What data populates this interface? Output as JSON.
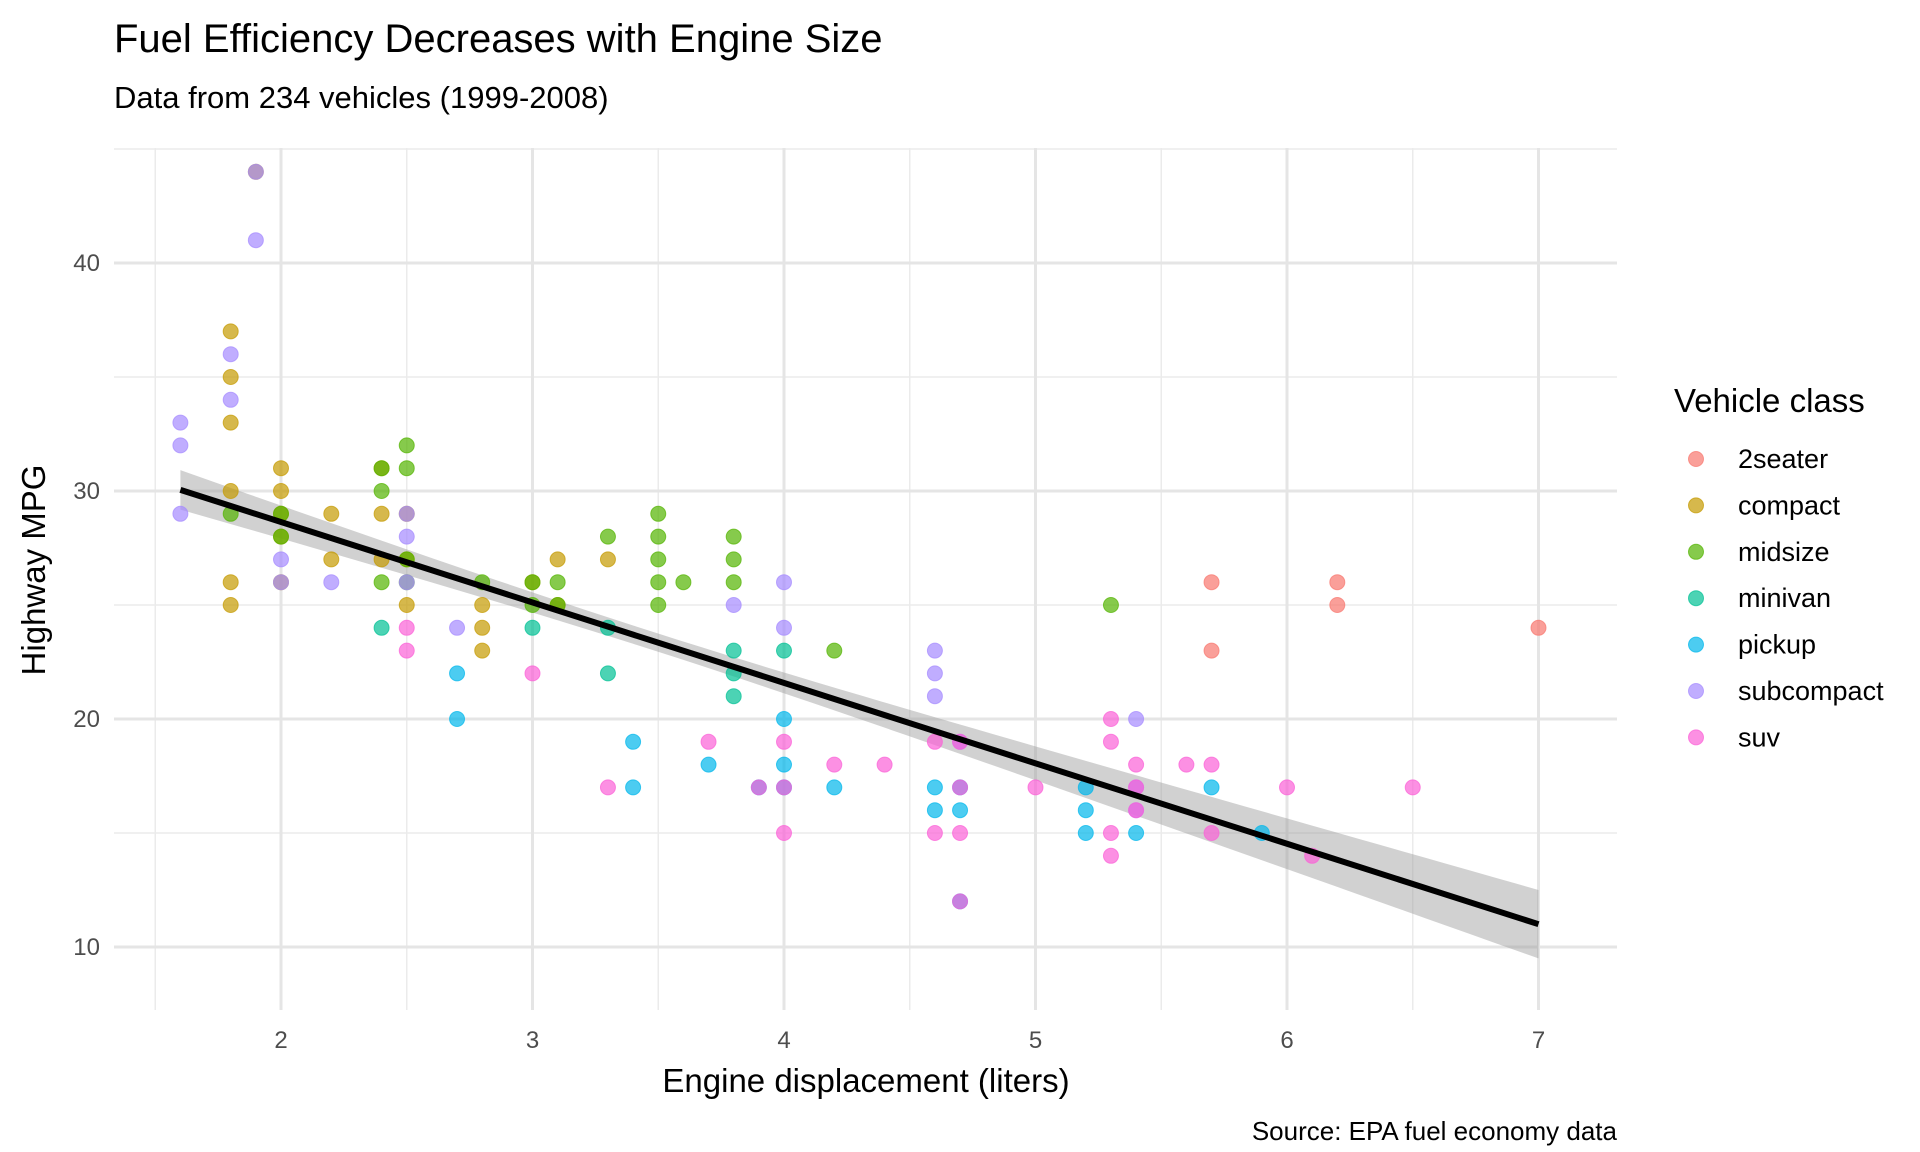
{
  "chart_data": {
    "type": "scatter",
    "title": "Fuel Efficiency Decreases with Engine Size",
    "subtitle": "Data from 234 vehicles (1999-2008)",
    "xlabel": "Engine displacement (liters)",
    "ylabel": "Highway MPG",
    "caption": "Source: EPA fuel economy data",
    "xlim": [
      1.33,
      7.27
    ],
    "ylim": [
      7.8,
      45.2
    ],
    "x_ticks": [
      "2",
      "3",
      "4",
      "5",
      "6",
      "7"
    ],
    "y_ticks": [
      "10",
      "20",
      "30",
      "40"
    ],
    "grid": true,
    "legend": {
      "title": "Vehicle class",
      "position": "right"
    },
    "series": [
      {
        "name": "2seater",
        "color": "#F8766D",
        "points": [
          [
            5.7,
            26
          ],
          [
            5.7,
            23
          ],
          [
            6.2,
            26
          ],
          [
            6.2,
            25
          ],
          [
            7.0,
            24
          ]
        ]
      },
      {
        "name": "compact",
        "color": "#C49A00",
        "points": [
          [
            1.8,
            37
          ],
          [
            1.8,
            35
          ],
          [
            1.8,
            33
          ],
          [
            1.8,
            30
          ],
          [
            1.8,
            26
          ],
          [
            1.8,
            25
          ],
          [
            1.9,
            44
          ],
          [
            2.0,
            31
          ],
          [
            2.0,
            30
          ],
          [
            2.0,
            29
          ],
          [
            2.0,
            28
          ],
          [
            2.0,
            26
          ],
          [
            2.2,
            29
          ],
          [
            2.2,
            27
          ],
          [
            2.4,
            31
          ],
          [
            2.4,
            29
          ],
          [
            2.4,
            27
          ],
          [
            2.5,
            29
          ],
          [
            2.5,
            27
          ],
          [
            2.5,
            25
          ],
          [
            2.8,
            25
          ],
          [
            2.8,
            24
          ],
          [
            2.8,
            23
          ],
          [
            3.0,
            26
          ],
          [
            3.1,
            27
          ],
          [
            3.1,
            25
          ],
          [
            3.3,
            27
          ]
        ]
      },
      {
        "name": "midsize",
        "color": "#53B400",
        "points": [
          [
            1.8,
            29
          ],
          [
            2.0,
            29
          ],
          [
            2.0,
            28
          ],
          [
            2.4,
            31
          ],
          [
            2.4,
            30
          ],
          [
            2.4,
            26
          ],
          [
            2.5,
            32
          ],
          [
            2.5,
            31
          ],
          [
            2.5,
            27
          ],
          [
            2.5,
            26
          ],
          [
            2.8,
            26
          ],
          [
            3.0,
            26
          ],
          [
            3.0,
            25
          ],
          [
            3.1,
            26
          ],
          [
            3.1,
            25
          ],
          [
            3.3,
            28
          ],
          [
            3.5,
            29
          ],
          [
            3.5,
            28
          ],
          [
            3.5,
            27
          ],
          [
            3.5,
            26
          ],
          [
            3.5,
            25
          ],
          [
            3.6,
            26
          ],
          [
            3.8,
            28
          ],
          [
            3.8,
            27
          ],
          [
            3.8,
            26
          ],
          [
            4.2,
            23
          ],
          [
            5.3,
            25
          ]
        ]
      },
      {
        "name": "minivan",
        "color": "#00C094",
        "points": [
          [
            2.4,
            24
          ],
          [
            3.0,
            24
          ],
          [
            3.3,
            24
          ],
          [
            3.3,
            22
          ],
          [
            3.8,
            23
          ],
          [
            3.8,
            22
          ],
          [
            3.8,
            21
          ],
          [
            4.0,
            23
          ]
        ]
      },
      {
        "name": "pickup",
        "color": "#00B6EB",
        "points": [
          [
            2.7,
            22
          ],
          [
            2.7,
            20
          ],
          [
            3.4,
            19
          ],
          [
            3.4,
            17
          ],
          [
            3.7,
            18
          ],
          [
            3.9,
            17
          ],
          [
            4.0,
            20
          ],
          [
            4.0,
            18
          ],
          [
            4.0,
            17
          ],
          [
            4.2,
            17
          ],
          [
            4.6,
            17
          ],
          [
            4.6,
            16
          ],
          [
            4.7,
            17
          ],
          [
            4.7,
            16
          ],
          [
            4.7,
            12
          ],
          [
            5.2,
            17
          ],
          [
            5.2,
            16
          ],
          [
            5.2,
            15
          ],
          [
            5.4,
            15
          ],
          [
            5.7,
            17
          ],
          [
            5.9,
            15
          ]
        ]
      },
      {
        "name": "subcompact",
        "color": "#A58AFF",
        "points": [
          [
            1.6,
            33
          ],
          [
            1.6,
            32
          ],
          [
            1.6,
            29
          ],
          [
            1.8,
            36
          ],
          [
            1.8,
            34
          ],
          [
            1.9,
            44
          ],
          [
            1.9,
            41
          ],
          [
            2.0,
            27
          ],
          [
            2.0,
            26
          ],
          [
            2.2,
            26
          ],
          [
            2.5,
            29
          ],
          [
            2.5,
            28
          ],
          [
            2.5,
            26
          ],
          [
            2.7,
            24
          ],
          [
            3.8,
            25
          ],
          [
            4.0,
            26
          ],
          [
            4.0,
            24
          ],
          [
            4.6,
            23
          ],
          [
            4.6,
            22
          ],
          [
            4.6,
            21
          ],
          [
            4.7,
            19
          ],
          [
            5.4,
            20
          ],
          [
            5.4,
            17
          ],
          [
            5.4,
            16
          ]
        ]
      },
      {
        "name": "suv",
        "color": "#FB61D7",
        "points": [
          [
            2.5,
            24
          ],
          [
            2.5,
            23
          ],
          [
            3.0,
            22
          ],
          [
            3.3,
            17
          ],
          [
            3.7,
            19
          ],
          [
            3.9,
            17
          ],
          [
            4.0,
            19
          ],
          [
            4.0,
            17
          ],
          [
            4.0,
            15
          ],
          [
            4.2,
            18
          ],
          [
            4.4,
            18
          ],
          [
            4.6,
            19
          ],
          [
            4.6,
            15
          ],
          [
            4.7,
            19
          ],
          [
            4.7,
            17
          ],
          [
            4.7,
            15
          ],
          [
            4.7,
            12
          ],
          [
            5.0,
            17
          ],
          [
            5.3,
            20
          ],
          [
            5.3,
            19
          ],
          [
            5.3,
            15
          ],
          [
            5.3,
            14
          ],
          [
            5.4,
            18
          ],
          [
            5.4,
            17
          ],
          [
            5.4,
            16
          ],
          [
            5.6,
            18
          ],
          [
            5.7,
            18
          ],
          [
            5.7,
            15
          ],
          [
            6.0,
            17
          ],
          [
            6.1,
            14
          ],
          [
            6.5,
            17
          ]
        ]
      }
    ],
    "trend_line": {
      "type": "linear",
      "x_range": [
        1.6,
        7.0
      ],
      "y_at_range": [
        30.05,
        11.0
      ],
      "color": "#000000",
      "confidence_band": true
    }
  }
}
